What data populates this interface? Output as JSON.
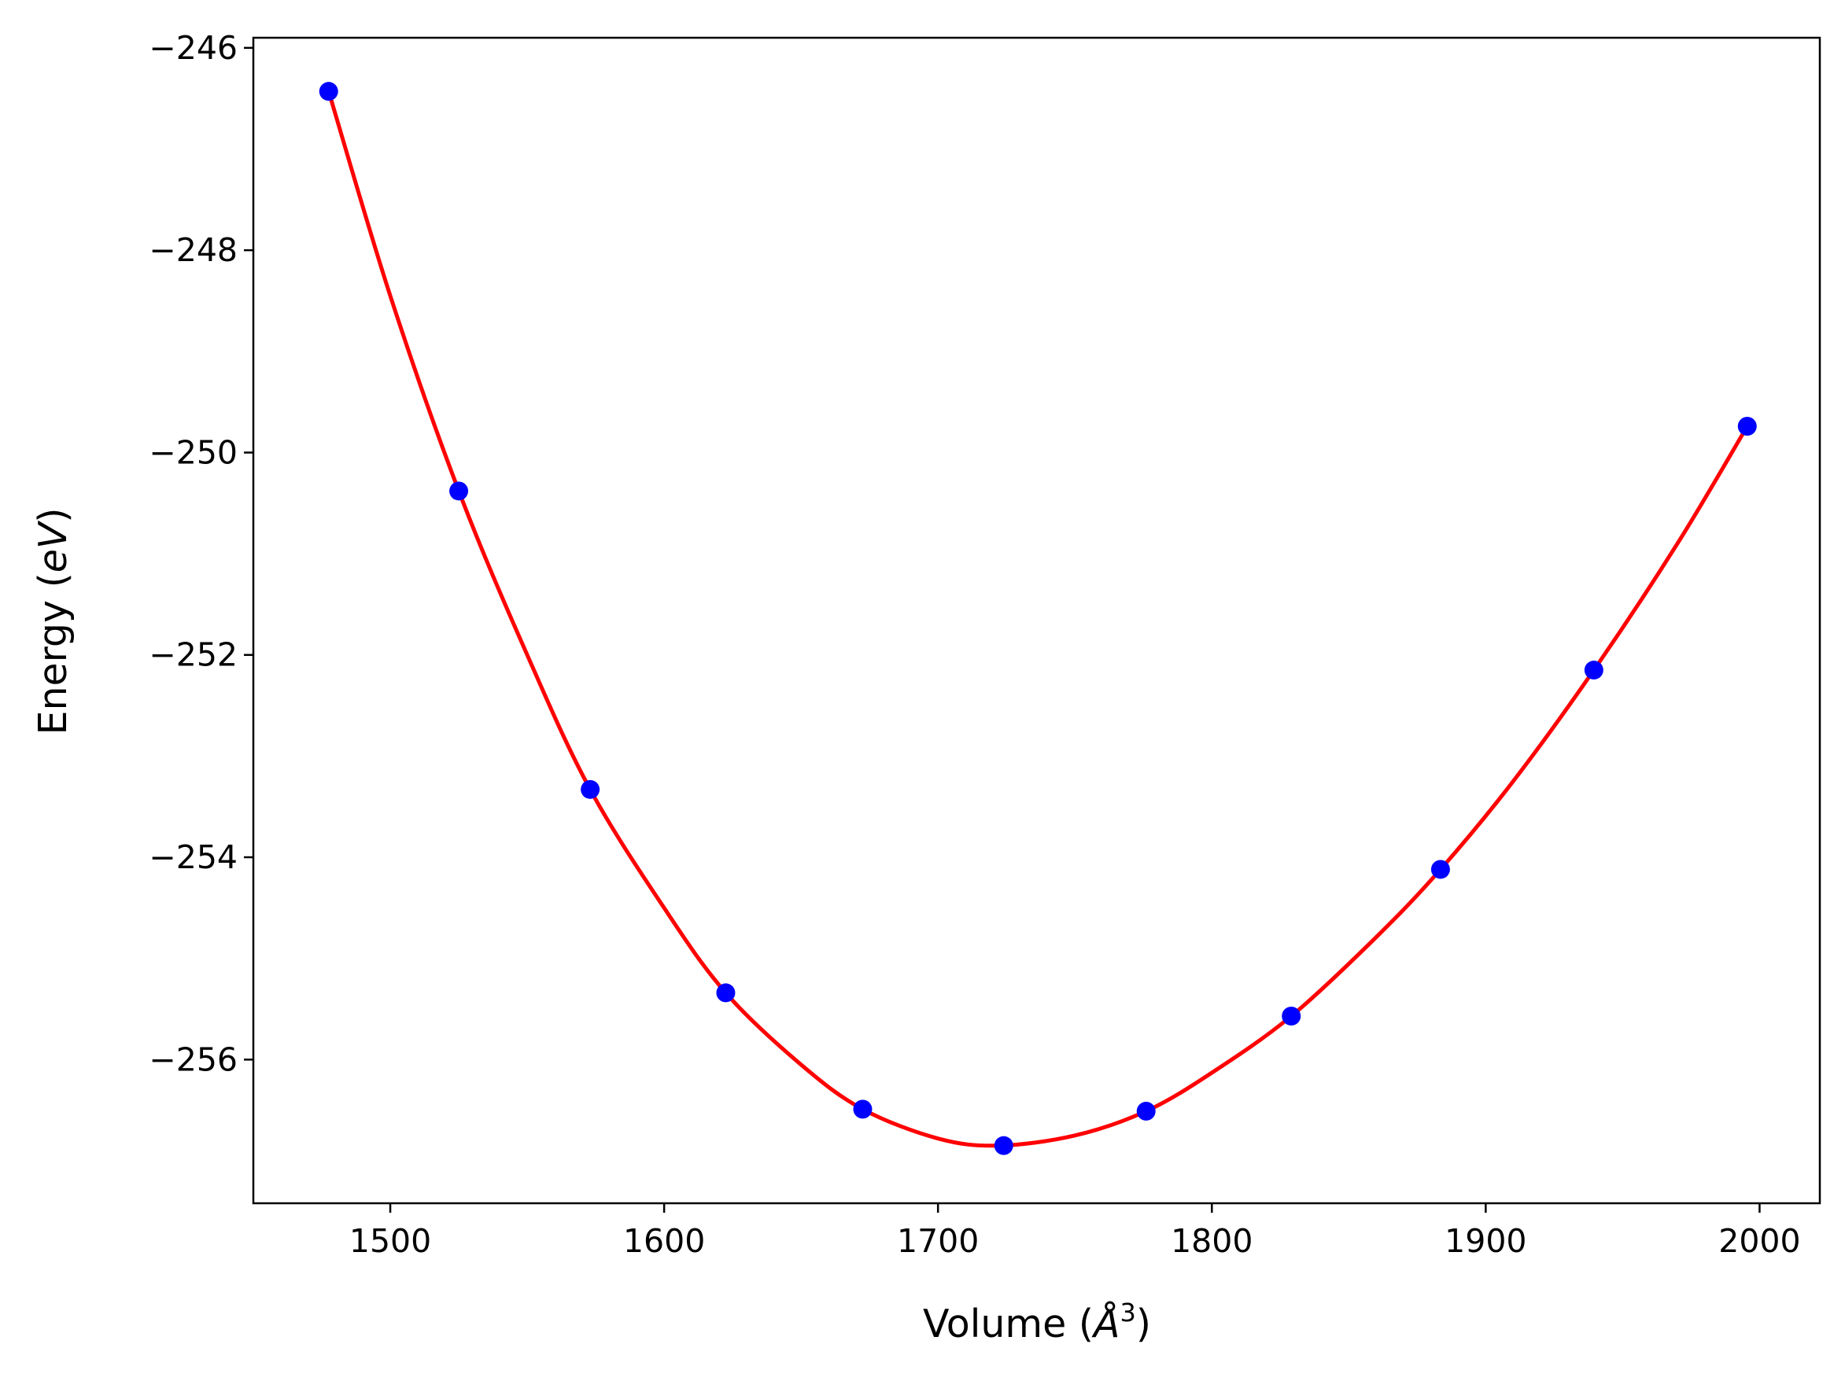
{
  "chart_data": {
    "type": "scatter",
    "xlabel": "Volume (",
    "xlabel_unit": "Å",
    "xlabel_exp": "3",
    "xlabel_close": ")",
    "ylabel": "Energy (",
    "ylabel_unit": "eV",
    "ylabel_close": ")",
    "xlim": [
      1450,
      2022
    ],
    "ylim": [
      -257.42,
      -245.9
    ],
    "xticks": [
      1500,
      1600,
      1700,
      1800,
      1900,
      2000
    ],
    "yticks": [
      -246,
      -248,
      -250,
      -252,
      -254,
      -256
    ],
    "xtick_labels": [
      "1500",
      "1600",
      "1700",
      "1800",
      "1900",
      "2000"
    ],
    "ytick_labels": [
      "−246",
      "−248",
      "−250",
      "−252",
      "−254",
      "−256"
    ],
    "grid": false,
    "series": [
      {
        "kind": "points",
        "color": "#0000ff",
        "x": [
          1477.5,
          1525,
          1573,
          1622.5,
          1672.5,
          1724,
          1776,
          1829,
          1883.5,
          1939.5,
          1995.5
        ],
        "y": [
          -246.43,
          -250.38,
          -253.33,
          -255.34,
          -256.49,
          -256.85,
          -256.51,
          -255.57,
          -254.12,
          -252.15,
          -249.74
        ]
      },
      {
        "kind": "fit-curve",
        "color": "#ff0000",
        "x": [
          1477.5,
          1500,
          1525,
          1550,
          1573,
          1600,
          1622.5,
          1650,
          1672.5,
          1700,
          1722,
          1750,
          1776,
          1800,
          1829,
          1860,
          1883.5,
          1910,
          1939.5,
          1970,
          1995.5
        ],
        "y": [
          -246.43,
          -248.45,
          -250.38,
          -252.0,
          -253.33,
          -254.5,
          -255.34,
          -256.05,
          -256.49,
          -256.78,
          -256.85,
          -256.75,
          -256.51,
          -256.13,
          -255.57,
          -254.79,
          -254.12,
          -253.25,
          -252.15,
          -250.9,
          -249.74
        ]
      }
    ]
  }
}
